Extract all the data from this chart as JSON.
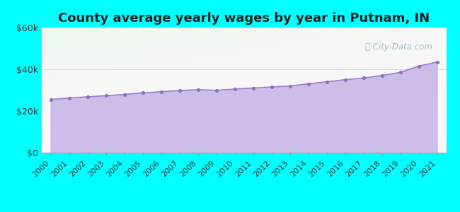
{
  "title": "County average yearly wages by year in Putnam, IN",
  "years": [
    2000,
    2001,
    2002,
    2003,
    2004,
    2005,
    2006,
    2007,
    2008,
    2009,
    2010,
    2011,
    2012,
    2013,
    2014,
    2015,
    2016,
    2017,
    2018,
    2019,
    2020,
    2021
  ],
  "wages": [
    25500,
    26200,
    26800,
    27300,
    27900,
    28700,
    29200,
    29800,
    30200,
    29900,
    30500,
    31000,
    31500,
    32000,
    33000,
    34000,
    35000,
    35800,
    37000,
    38500,
    41500,
    43500
  ],
  "ylim": [
    0,
    60000
  ],
  "yticks": [
    0,
    20000,
    40000,
    60000
  ],
  "ytick_labels": [
    "$0",
    "$20k",
    "$40k",
    "$60k"
  ],
  "fill_color": "#c8b8e8",
  "fill_alpha": 0.9,
  "line_color": "#9b80c8",
  "dot_color": "#9070b8",
  "background_color": "#00ffff",
  "grid_color": "#dddddd",
  "title_fontsize": 13,
  "title_color": "#222222",
  "watermark_text": "City-Data.com",
  "watermark_color": "#99bbbb",
  "tick_label_color": "#333333",
  "tick_fontsize": 8,
  "ytick_fontsize": 9
}
